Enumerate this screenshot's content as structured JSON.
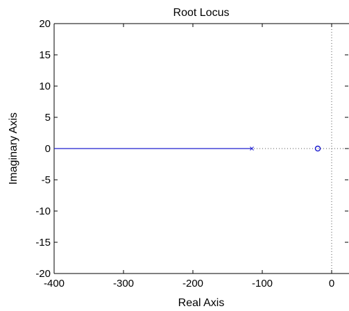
{
  "chart_data": {
    "type": "line",
    "title": "Root Locus",
    "xlabel": "Real Axis",
    "ylabel": "Imaginary Axis",
    "xlim": [
      -400,
      25
    ],
    "ylim": [
      -20,
      20
    ],
    "xticks": [
      -400,
      -300,
      -200,
      -100,
      0
    ],
    "yticks": [
      -20,
      -15,
      -10,
      -5,
      0,
      5,
      10,
      15,
      20
    ],
    "xtick_labels": [
      "-400",
      "-300",
      "-200",
      "-100",
      "0"
    ],
    "ytick_labels": [
      "-20",
      "-15",
      "-10",
      "-5",
      "0",
      "5",
      "10",
      "15",
      "20"
    ],
    "grid": false,
    "series": [
      {
        "role": "locus-branch",
        "x": [
          -115,
          -400
        ],
        "y": [
          0,
          0
        ],
        "color": "#1f1fcf"
      }
    ],
    "poles": [
      {
        "x": -115,
        "y": 0
      }
    ],
    "zeros": [
      {
        "x": -20,
        "y": 0
      }
    ],
    "reference_lines": {
      "real_axis_y": 0,
      "imaginary_axis_x": 0,
      "style": "dotted"
    },
    "colors": {
      "locus": "#1f1fcf",
      "markers": "#1f1fcf",
      "reference": "#000000",
      "frame": "#000000"
    }
  }
}
